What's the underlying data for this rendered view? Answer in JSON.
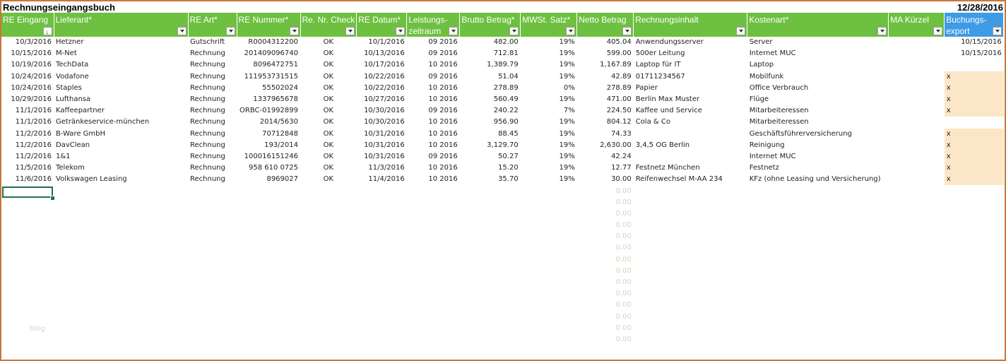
{
  "sheet": {
    "title": "Rechnungseingangsbuch",
    "date": "12/28/2016"
  },
  "headers": [
    {
      "lines": [
        "RE Eingang"
      ],
      "filter": "sort"
    },
    {
      "lines": [
        "Lieferant*"
      ],
      "filter": "dropdown"
    },
    {
      "lines": [
        "RE Art*"
      ],
      "filter": "dropdown"
    },
    {
      "lines": [
        "RE Nummer*"
      ],
      "filter": "dropdown"
    },
    {
      "lines": [
        "Re. Nr. Check"
      ],
      "filter": "dropdown"
    },
    {
      "lines": [
        "RE Datum*"
      ],
      "filter": "dropdown"
    },
    {
      "lines": [
        "Leistungs-",
        "zeitraum"
      ],
      "filter": "dropdown"
    },
    {
      "lines": [
        "Brutto Betrag*"
      ],
      "filter": "dropdown"
    },
    {
      "lines": [
        "MWSt. Satz*"
      ],
      "filter": "dropdown"
    },
    {
      "lines": [
        "Netto Betrag"
      ],
      "filter": "dropdown"
    },
    {
      "lines": [
        "Rechnungsinhalt"
      ],
      "filter": "dropdown"
    },
    {
      "lines": [
        "Kostenart*"
      ],
      "filter": "dropdown"
    },
    {
      "lines": [
        "MA Kürzel"
      ],
      "filter": "dropdown"
    },
    {
      "lines": [
        "Buchungs-",
        "export"
      ],
      "filter": "dropdown"
    }
  ],
  "rows": [
    [
      "10/3/2016",
      "Hetzner",
      "Gutschrift",
      "R0004312200",
      "OK",
      "10/1/2016",
      "09 2016",
      "482.00",
      "19%",
      "405.04",
      "Anwendungsserver",
      "Server",
      "",
      "10/15/2016"
    ],
    [
      "10/15/2016",
      "M-Net",
      "Rechnung",
      "201409096740",
      "OK",
      "10/13/2016",
      "09 2016",
      "712.81",
      "19%",
      "599.00",
      "500er Leitung",
      "Internet MUC",
      "",
      "10/15/2016"
    ],
    [
      "10/19/2016",
      "TechData",
      "Rechnung",
      "8096472751",
      "OK",
      "10/17/2016",
      "10 2016",
      "1,389.79",
      "19%",
      "1,167.89",
      "Laptop für IT",
      "Laptop",
      "",
      ""
    ],
    [
      "10/24/2016",
      "Vodafone",
      "Rechnung",
      "111953731515",
      "OK",
      "10/22/2016",
      "09 2016",
      "51.04",
      "19%",
      "42.89",
      "01711234567",
      "Mobilfunk",
      "",
      "x"
    ],
    [
      "10/24/2016",
      "Staples",
      "Rechnung",
      "55502024",
      "OK",
      "10/22/2016",
      "10 2016",
      "278.89",
      "0%",
      "278.89",
      "Papier",
      "Office Verbrauch",
      "",
      "x"
    ],
    [
      "10/29/2016",
      "Lufthansa",
      "Rechnung",
      "1337965678",
      "OK",
      "10/27/2016",
      "10 2016",
      "560.49",
      "19%",
      "471.00",
      "Berlin Max Muster",
      "Flüge",
      "",
      "x"
    ],
    [
      "11/1/2016",
      "Kaffeepartner",
      "Rechnung",
      "ORBC-01992899",
      "OK",
      "10/30/2016",
      "09 2016",
      "240.22",
      "7%",
      "224.50",
      "Kaffee und Service",
      "Mitarbeiteressen",
      "",
      "x"
    ],
    [
      "11/1/2016",
      "Getränkeservice-münchen",
      "Rechnung",
      "2014/5630",
      "OK",
      "10/30/2016",
      "10 2016",
      "956.90",
      "19%",
      "804.12",
      "Cola & Co",
      "Mitarbeiteressen",
      "",
      ""
    ],
    [
      "11/2/2016",
      "B-Ware GmbH",
      "Rechnung",
      "70712848",
      "OK",
      "10/31/2016",
      "10 2016",
      "88.45",
      "19%",
      "74.33",
      "",
      "Geschäftsführerversicherung",
      "",
      "x"
    ],
    [
      "11/2/2016",
      "DavClean",
      "Rechnung",
      "193/2014",
      "OK",
      "10/31/2016",
      "10 2016",
      "3,129.70",
      "19%",
      "2,630.00",
      "3,4,5 OG Berlin",
      "Reinigung",
      "",
      "x"
    ],
    [
      "11/2/2016",
      "1&1",
      "Rechnung",
      "100016151246",
      "OK",
      "10/31/2016",
      "09 2016",
      "50.27",
      "19%",
      "42.24",
      "",
      "Internet MUC",
      "",
      "x"
    ],
    [
      "11/5/2016",
      "Telekom",
      "Rechnung",
      "958 610 0725",
      "OK",
      "11/3/2016",
      "10 2016",
      "15.20",
      "19%",
      "12.77",
      "Festnetz München",
      "Festnetz",
      "",
      "x"
    ],
    [
      "11/6/2016",
      "Volkswagen Leasing",
      "Rechnung",
      "8969027",
      "OK",
      "11/4/2016",
      "10 2016",
      "35.70",
      "19%",
      "30.00",
      "Reifenwechsel M-AA 234",
      "KFz (ohne Leasing und Versicherung)",
      "",
      "x"
    ]
  ],
  "empty_netto": "0.00",
  "watermark": "blog",
  "colors": {
    "header_green": "#6dc040",
    "header_blue": "#3e9be6",
    "export_fill": "#fbe6c8",
    "frame": "#c8763a"
  }
}
